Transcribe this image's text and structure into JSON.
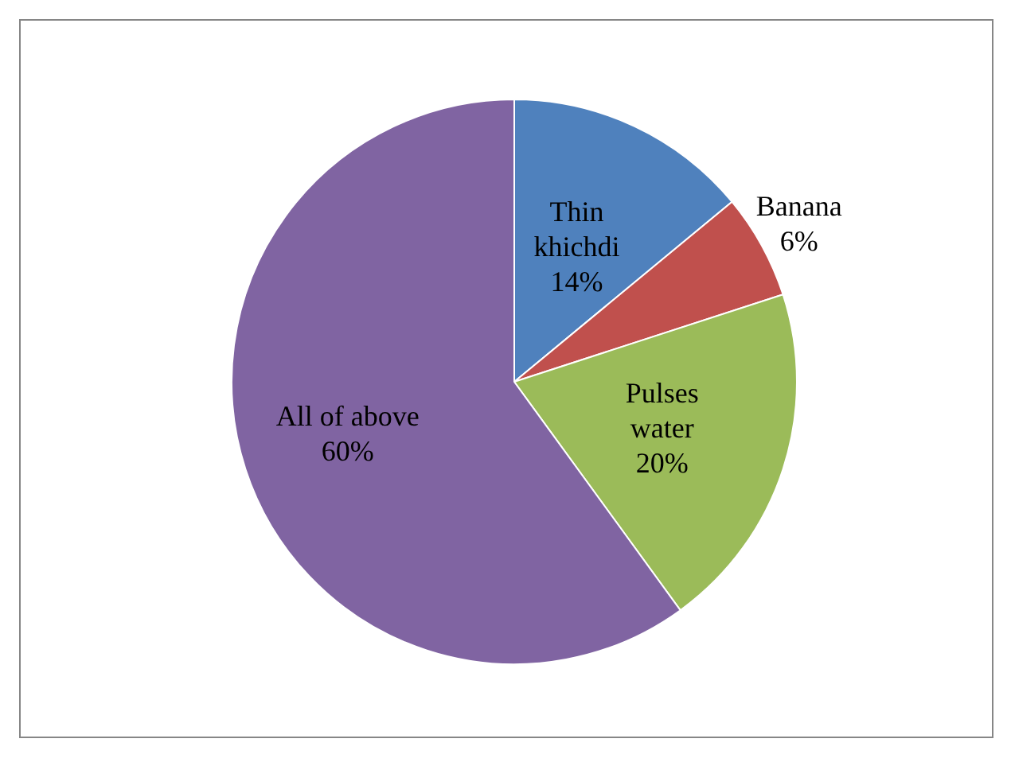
{
  "chart_data": {
    "type": "pie",
    "categories": [
      "Thin khichdi",
      "Banana",
      "Pulses water",
      "All of above"
    ],
    "values": [
      14,
      6,
      20,
      60
    ],
    "value_labels": [
      "14%",
      "6%",
      "20%",
      "60%"
    ],
    "colors": [
      "#4f81bd",
      "#c0504d",
      "#9bbb59",
      "#8064a2"
    ],
    "data_labels": true,
    "legend": false
  }
}
